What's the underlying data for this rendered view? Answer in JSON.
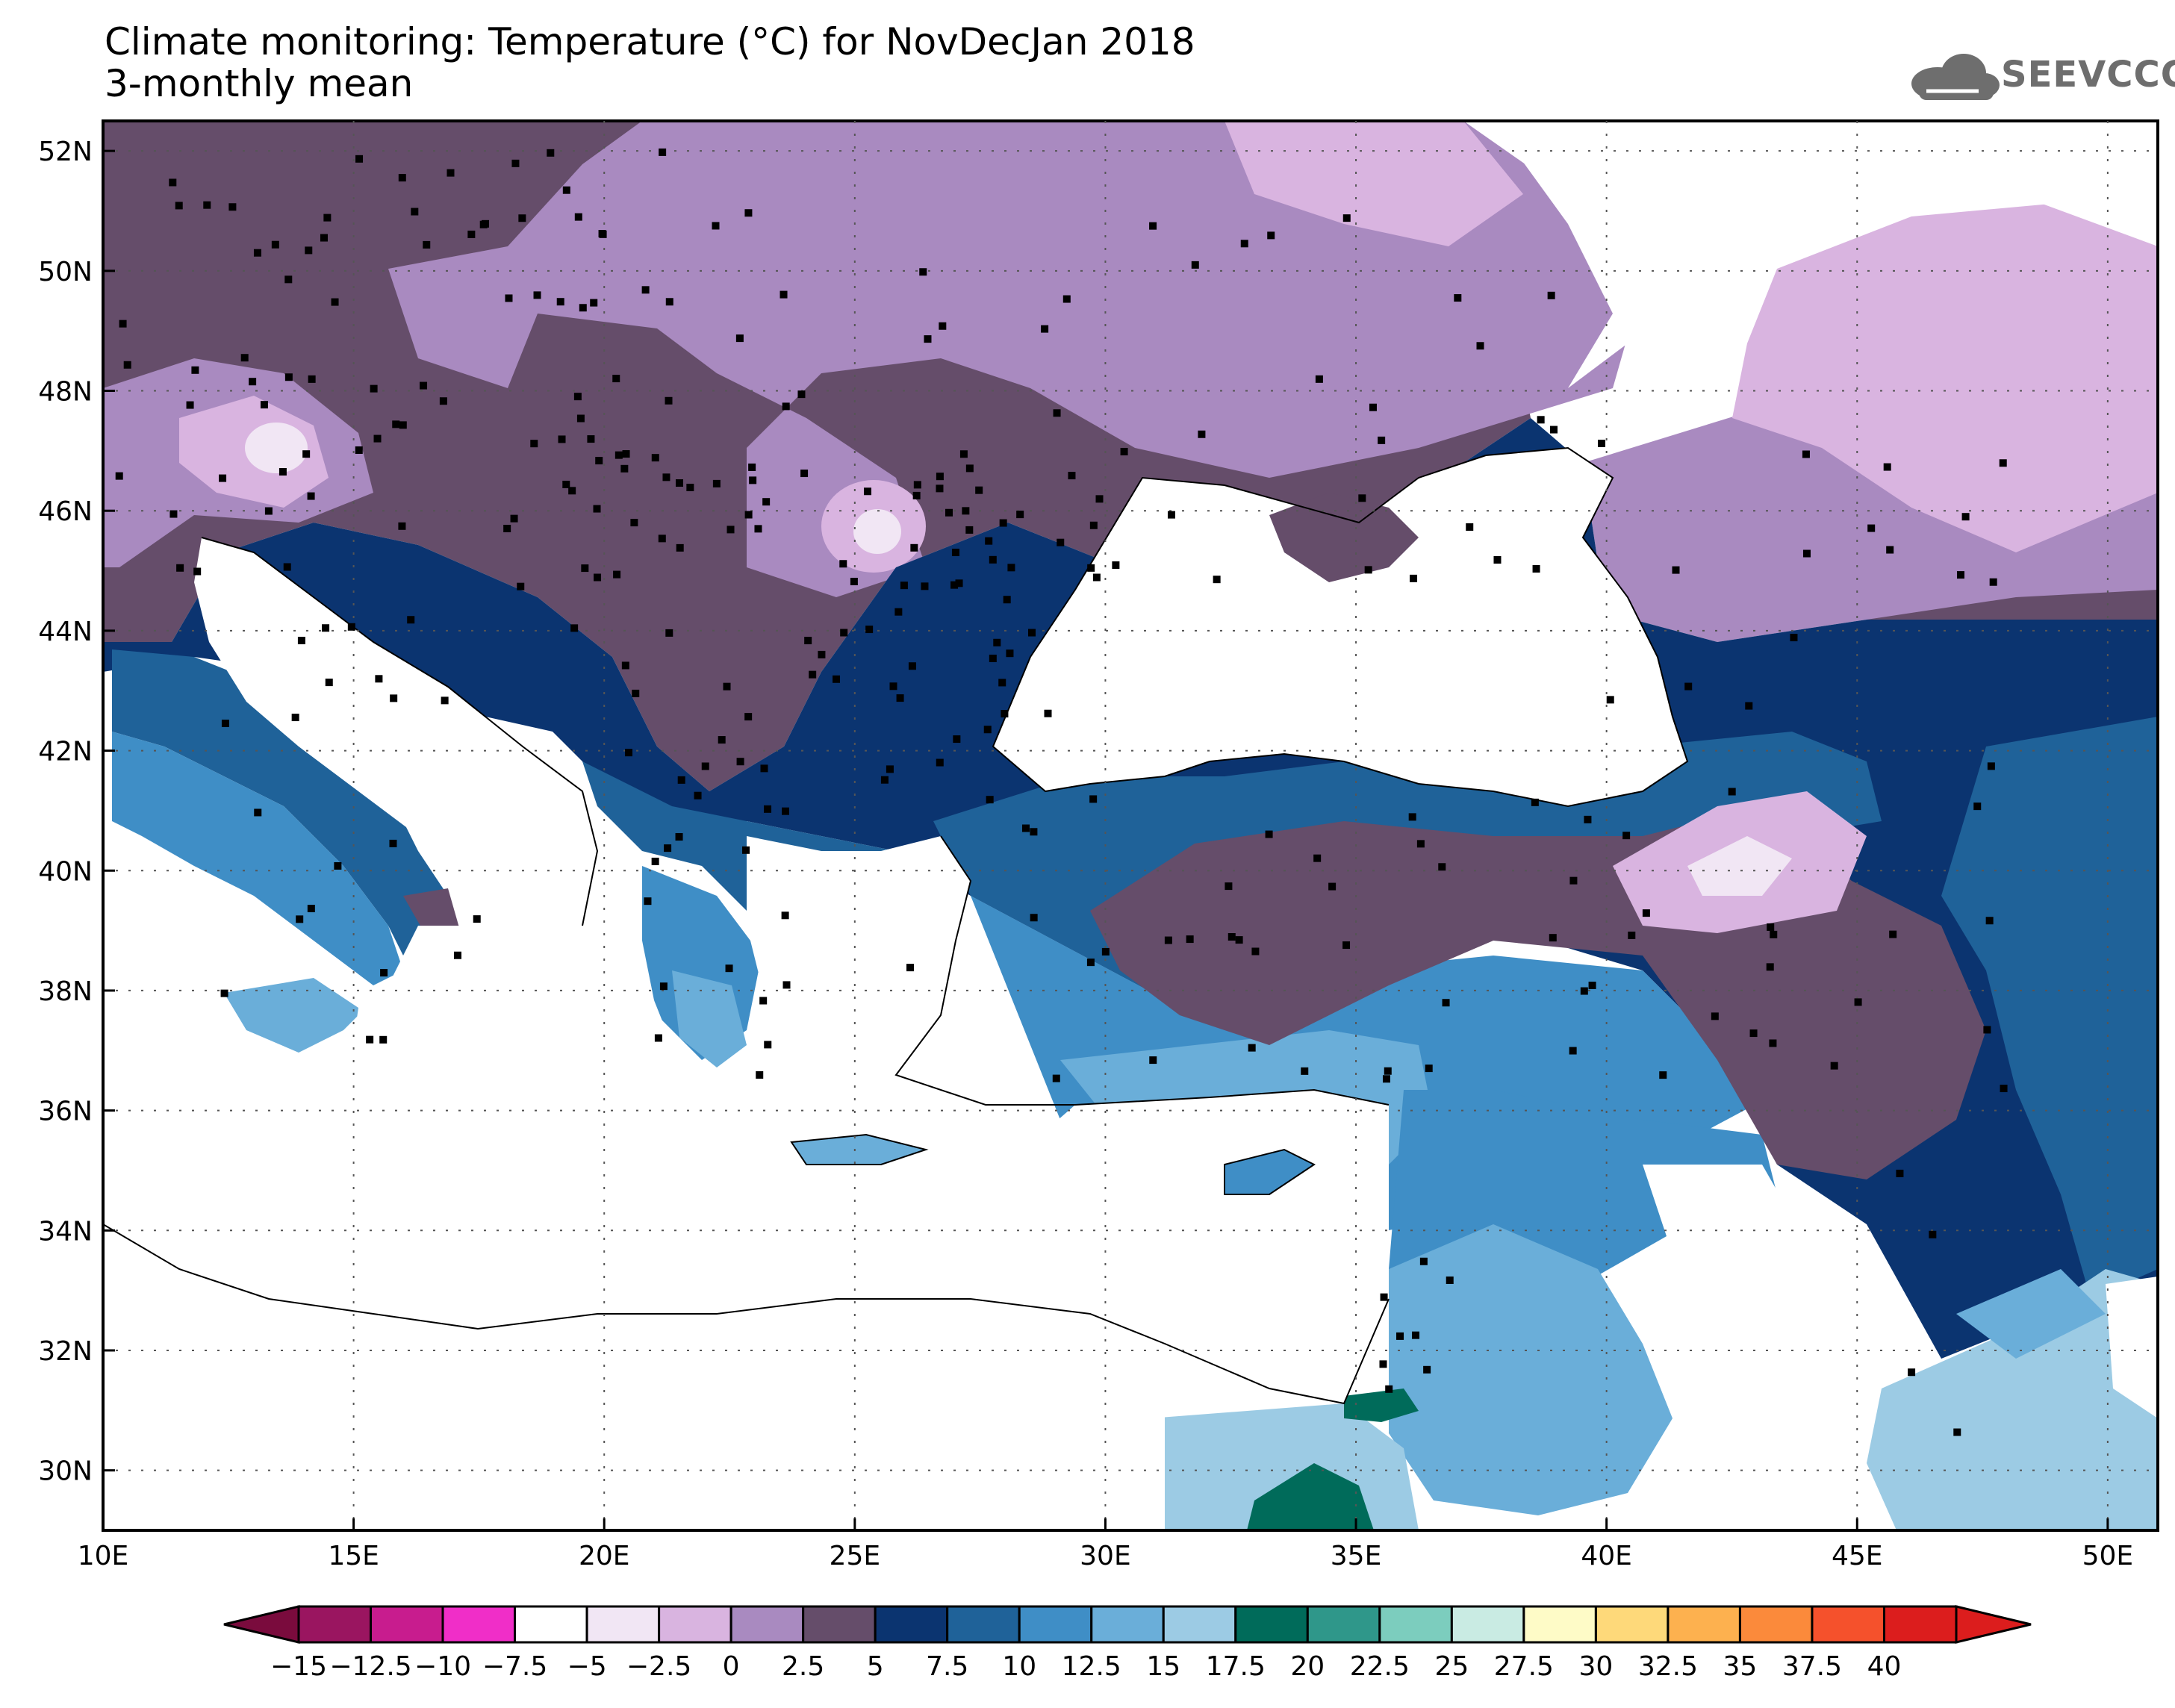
{
  "title": {
    "line1": "Climate monitoring: Temperature (°C) for NovDecJan 2018",
    "line2": "3-monthly mean"
  },
  "logo": {
    "text": "SEEVCCC"
  },
  "map": {
    "lon_range": [
      10,
      51
    ],
    "lat_range": [
      29,
      52.5
    ],
    "lon_ticks": [
      "10E",
      "15E",
      "20E",
      "25E",
      "30E",
      "35E",
      "40E",
      "45E",
      "50E"
    ],
    "lat_ticks": [
      "52N",
      "50N",
      "48N",
      "46N",
      "44N",
      "42N",
      "40N",
      "38N",
      "36N",
      "34N",
      "32N",
      "30N"
    ],
    "grid": "dotted"
  },
  "colorbar": {
    "labels": [
      "-15",
      "-12.5",
      "-10",
      "-7.5",
      "-5",
      "-2.5",
      "0",
      "2.5",
      "5",
      "7.5",
      "10",
      "12.5",
      "15",
      "17.5",
      "20",
      "22.5",
      "25",
      "27.5",
      "30",
      "32.5",
      "35",
      "37.5",
      "40"
    ],
    "colors": [
      "#9a1560",
      "#c81c8e",
      "#f02ec8",
      "#ffffff",
      "#f1e6f4",
      "#d9b4e0",
      "#a98ac0",
      "#654d6a",
      "#0b3470",
      "#1f6299",
      "#3f8ec6",
      "#6aaed9",
      "#9ccbe4",
      "#006b5a",
      "#2f978a",
      "#7ccdbe",
      "#c9ebe3",
      "#fefbc7",
      "#fed97a",
      "#fdb14f",
      "#fb8a3b",
      "#f5512c",
      "#dc1d1d"
    ],
    "under_color": "#7a0b3d",
    "over_color": "#dc1d1d"
  }
}
